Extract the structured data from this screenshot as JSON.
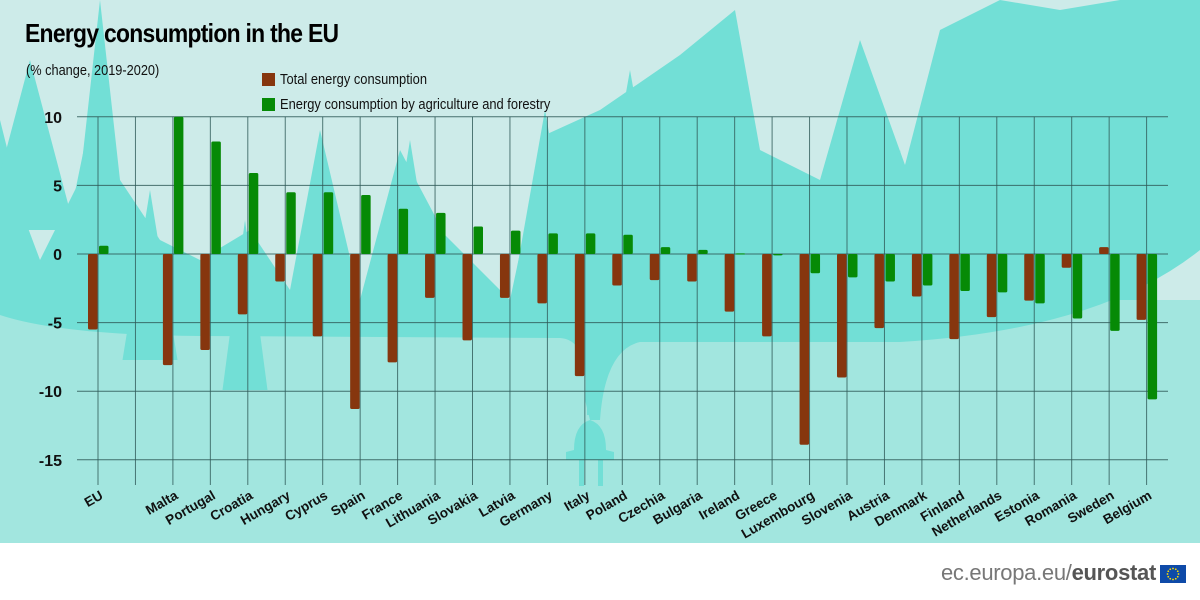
{
  "chart_data": {
    "type": "bar",
    "title": "Energy consumption in the EU",
    "subtitle": "(% change, 2019-2020)",
    "xlabel": "",
    "ylabel": "",
    "ylim": [
      -15,
      10
    ],
    "yticks": [
      10,
      5,
      0,
      -5,
      -10,
      -15
    ],
    "grid": true,
    "legend_position": "top-center",
    "categories": [
      "EU",
      "",
      "Malta",
      "Portugal",
      "Croatia",
      "Hungary",
      "Cyprus",
      "Spain",
      "France",
      "Lithuania",
      "Slovakia",
      "Latvia",
      "Germany",
      "Italy",
      "Poland",
      "Czechia",
      "Bulgaria",
      "Ireland",
      "Greece",
      "Luxembourg",
      "Slovenia",
      "Austria",
      "Denmark",
      "Finland",
      "Netherlands",
      "Estonia",
      "Romania",
      "Sweden",
      "Belgium"
    ],
    "series": [
      {
        "name": "Total energy consumption",
        "color": "#86360e",
        "values": [
          -5.5,
          null,
          -8.1,
          -7.0,
          -4.4,
          -2.0,
          -6.0,
          -11.3,
          -7.9,
          -3.2,
          -6.3,
          -3.2,
          -3.6,
          -8.9,
          -2.3,
          -1.9,
          -2.0,
          -4.2,
          -6.0,
          -13.9,
          -9.0,
          -5.4,
          -3.1,
          -6.2,
          -4.6,
          -3.4,
          -1.0,
          0.5,
          -4.8
        ]
      },
      {
        "name": "Energy consumption by agriculture and forestry",
        "color": "#068a06",
        "values": [
          0.6,
          null,
          10.0,
          8.2,
          5.9,
          4.5,
          4.5,
          4.3,
          3.3,
          3.0,
          2.0,
          1.7,
          1.5,
          1.5,
          1.4,
          0.5,
          0.3,
          0.05,
          -0.1,
          -1.4,
          -1.7,
          -2.0,
          -2.3,
          -2.7,
          -2.8,
          -3.6,
          -4.7,
          -5.6,
          -10.6
        ]
      }
    ]
  },
  "footer": {
    "site": "ec.europa.eu/",
    "brand": "eurostat"
  },
  "colors": {
    "sky": "#cdebe9",
    "forest": "#72dfd6",
    "ground": "#a2e6df",
    "grid": "#2f5a58"
  }
}
